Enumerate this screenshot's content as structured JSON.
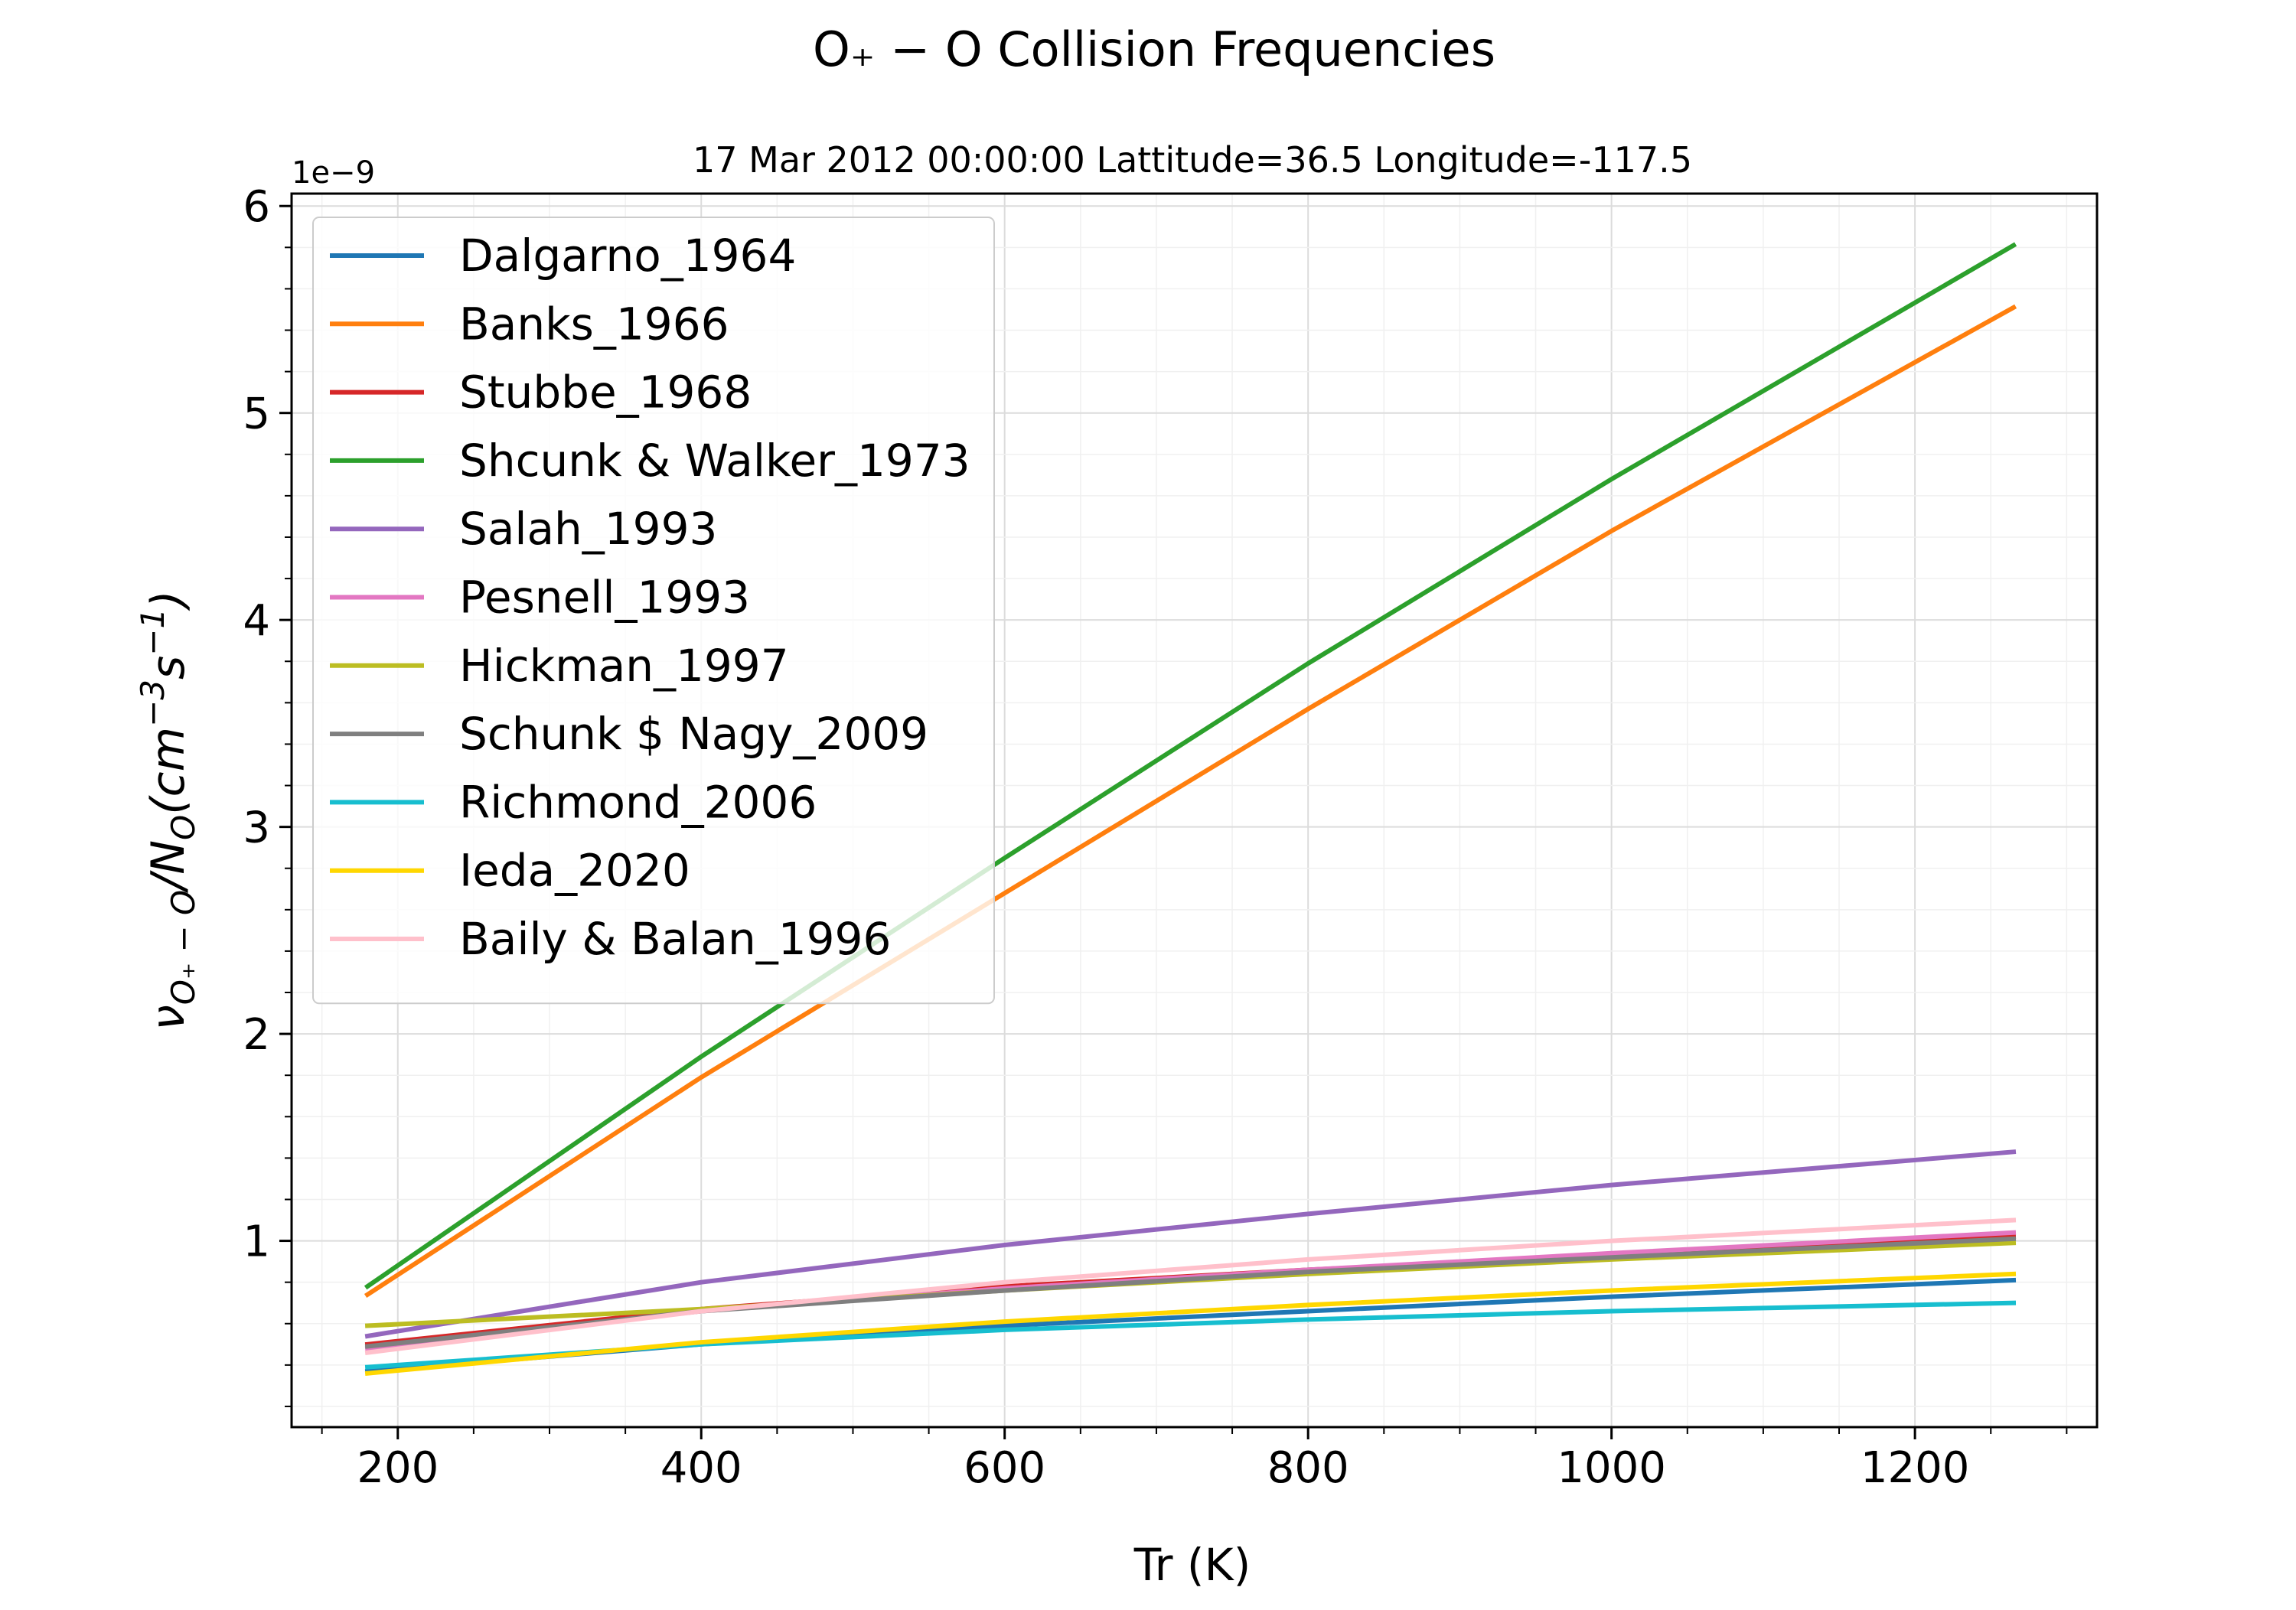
{
  "chart_data": {
    "type": "line",
    "title": "O₊ − O Collision Frequencies",
    "subtitle": "17 Mar 2012 00:00:00 Lattitude=36.5 Longitude=-117.5",
    "xlabel": "Tr (K)",
    "ylabel": "ν",
    "ylabel_sub1": "O₊ − O",
    "ylabel_mid": "/N",
    "ylabel_sub2": "O",
    "ylabel_unit": "(cm",
    "ylabel_sup1": "−3",
    "ylabel_s": "s",
    "ylabel_sup2": "−1",
    "ylabel_end": ")",
    "y_offset_label": "1e−9",
    "xlim": [
      130,
      1320
    ],
    "ylim": [
      0.1,
      6.06
    ],
    "xticks": [
      {
        "value": 200,
        "label": "200"
      },
      {
        "value": 400,
        "label": "400"
      },
      {
        "value": 600,
        "label": "600"
      },
      {
        "value": 800,
        "label": "800"
      },
      {
        "value": 1000,
        "label": "1000"
      },
      {
        "value": 1200,
        "label": "1200"
      }
    ],
    "yticks": [
      {
        "value": 1,
        "label": "1"
      },
      {
        "value": 2,
        "label": "2"
      },
      {
        "value": 3,
        "label": "3"
      },
      {
        "value": 4,
        "label": "4"
      },
      {
        "value": 5,
        "label": "5"
      },
      {
        "value": 6,
        "label": "6"
      }
    ],
    "grid": true,
    "legend_position": "top-left",
    "x": [
      180,
      400,
      600,
      800,
      1000,
      1265
    ],
    "series": [
      {
        "name": "Dalgarno_1964",
        "color": "#1f77b4",
        "values": [
          0.37,
          0.5,
          0.59,
          0.66,
          0.73,
          0.81
        ]
      },
      {
        "name": "Banks_1966",
        "color": "#ff7f0e",
        "values": [
          0.74,
          1.79,
          2.68,
          3.57,
          4.43,
          5.51
        ]
      },
      {
        "name": "Stubbe_1968",
        "color": "#d62728",
        "values": [
          0.5,
          0.67,
          0.78,
          0.86,
          0.93,
          1.02
        ]
      },
      {
        "name": "Shcunk & Walker_1973",
        "color": "#2ca02c",
        "values": [
          0.78,
          1.89,
          2.85,
          3.79,
          4.68,
          5.81
        ]
      },
      {
        "name": "Salah_1993",
        "color": "#9467bd",
        "values": [
          0.54,
          0.8,
          0.98,
          1.13,
          1.27,
          1.43
        ]
      },
      {
        "name": "Pesnell_1993",
        "color": "#e377c2",
        "values": [
          0.48,
          0.66,
          0.77,
          0.86,
          0.94,
          1.04
        ]
      },
      {
        "name": "Hickman_1997",
        "color": "#bcbd22",
        "values": [
          0.59,
          0.67,
          0.76,
          0.84,
          0.91,
          0.99
        ]
      },
      {
        "name": "Schunk $ Nagy_2009",
        "color": "#7f7f7f",
        "values": [
          0.49,
          0.66,
          0.76,
          0.85,
          0.92,
          1.01
        ]
      },
      {
        "name": "Richmond_2006",
        "color": "#17becf",
        "values": [
          0.39,
          0.5,
          0.57,
          0.62,
          0.66,
          0.7
        ]
      },
      {
        "name": "Ieda_2020",
        "color": "#ffd700",
        "values": [
          0.36,
          0.51,
          0.61,
          0.69,
          0.76,
          0.84
        ]
      },
      {
        "name": "Baily & Balan_1996",
        "color": "#ffc0cb",
        "values": [
          0.46,
          0.66,
          0.8,
          0.91,
          1.0,
          1.1
        ]
      }
    ]
  }
}
